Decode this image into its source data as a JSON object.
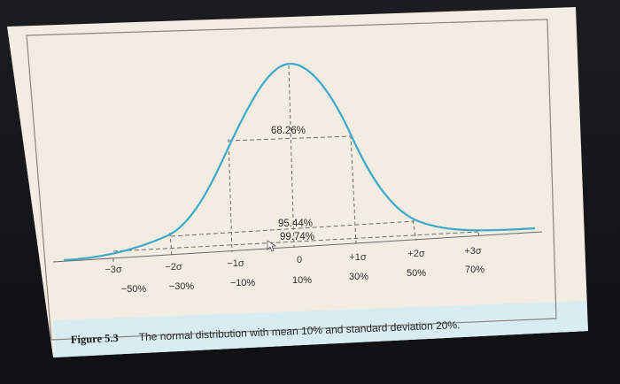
{
  "figure": {
    "caption_number": "Figure 5.3",
    "caption_text": "The normal distribution with mean 10% and standard deviation 20%."
  },
  "diagram": {
    "curve_color": "#3fa9c9",
    "page_color": "#f3ece3",
    "caption_bar_color": "#d7edf2",
    "band_labels": {
      "one_sigma": "68.26%",
      "two_sigma": "95.44%",
      "three_sigma": "99.74%"
    },
    "sigma_labels": [
      "−3σ",
      "−2σ",
      "−1σ",
      "0",
      "+1σ",
      "+2σ",
      "+3σ"
    ],
    "return_labels": [
      "−50%",
      "−30%",
      "−10%",
      "10%",
      "30%",
      "50%",
      "70%"
    ]
  }
}
